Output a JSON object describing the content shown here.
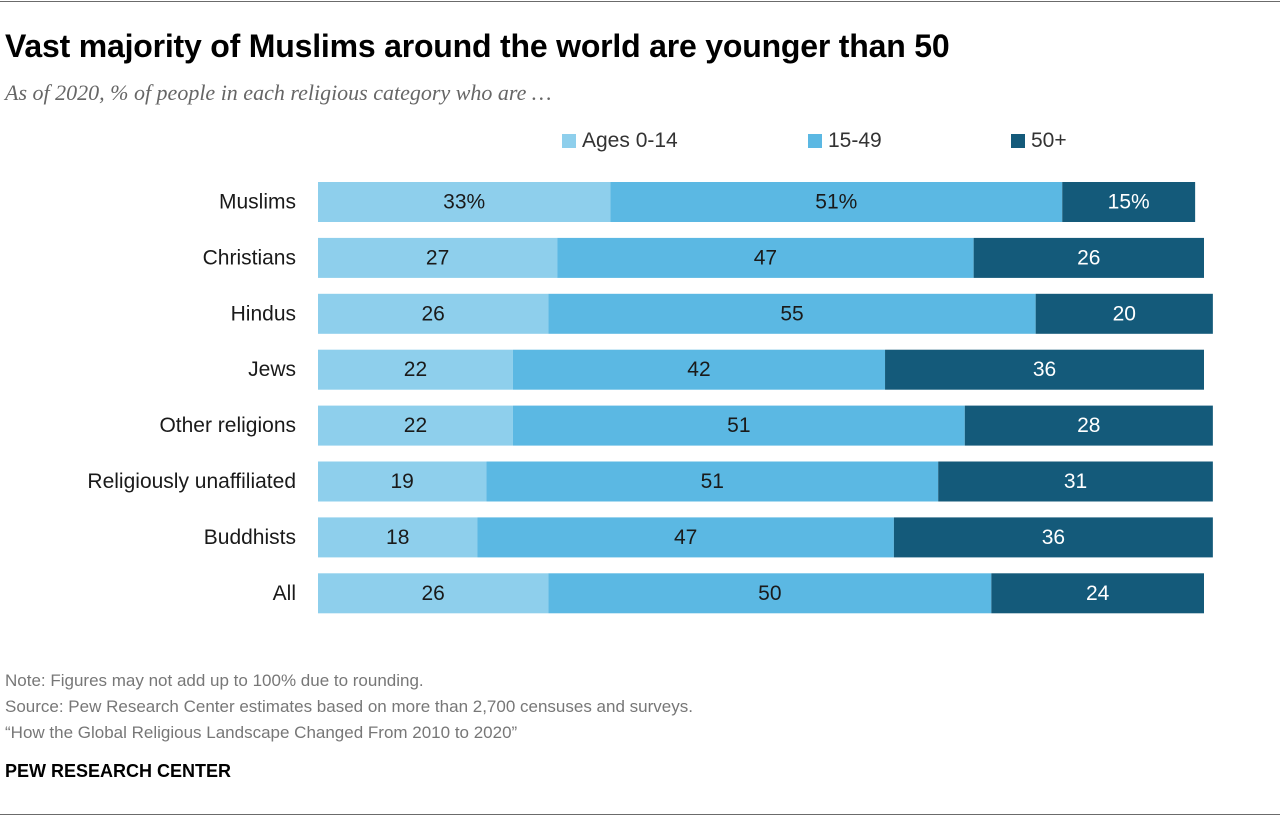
{
  "header": {
    "title": "Vast majority of Muslims around the world are younger than 50",
    "subtitle": "As of 2020, % of people in each religious category who are …"
  },
  "legend": [
    {
      "label": "Ages 0-14",
      "color": "#8ecfec"
    },
    {
      "label": "15-49",
      "color": "#5bb8e3"
    },
    {
      "label": "50+",
      "color": "#145a7a"
    }
  ],
  "chart_data": {
    "type": "bar",
    "orientation": "horizontal",
    "stacked": true,
    "title": "Vast majority of Muslims around the world are younger than 50",
    "subtitle": "As of 2020, % of people in each religious category who are …",
    "categories": [
      "Muslims",
      "Christians",
      "Hindus",
      "Jews",
      "Other religions",
      "Religiously unaffiliated",
      "Buddhists",
      "All"
    ],
    "series": [
      {
        "name": "Ages 0-14",
        "color": "#8ecfec",
        "values": [
          33,
          27,
          26,
          22,
          22,
          19,
          18,
          26
        ],
        "labels": [
          "33%",
          "27",
          "26",
          "22",
          "22",
          "19",
          "18",
          "26"
        ]
      },
      {
        "name": "15-49",
        "color": "#5bb8e3",
        "values": [
          51,
          47,
          55,
          42,
          51,
          51,
          47,
          50
        ],
        "labels": [
          "51%",
          "47",
          "55",
          "42",
          "51",
          "51",
          "47",
          "50"
        ]
      },
      {
        "name": "50+",
        "color": "#145a7a",
        "values": [
          15,
          26,
          20,
          36,
          28,
          31,
          36,
          24
        ],
        "labels": [
          "15%",
          "26",
          "20",
          "36",
          "28",
          "31",
          "36",
          "24"
        ]
      }
    ],
    "xlim": [
      0,
      100
    ],
    "xlabel": "",
    "ylabel": "",
    "legend_position": "top"
  },
  "footer": {
    "note": "Note: Figures may not add up to 100% due to rounding.",
    "source": "Source: Pew Research Center estimates based on more than 2,700 censuses and surveys.",
    "report": "“How the Global Religious Landscape Changed From 2010 to 2020”",
    "brand": "PEW RESEARCH CENTER"
  }
}
